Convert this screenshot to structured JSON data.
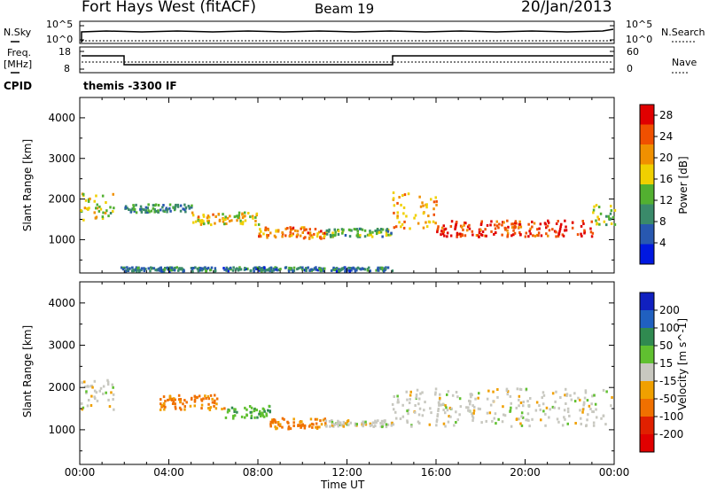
{
  "header": {
    "station": "Fort Hays West (fitACF)",
    "beam": "Beam 19",
    "date": "20/Jan/2013"
  },
  "top_panels": {
    "nsky_label": "N.Sky",
    "nsky_ticks": [
      "10^5",
      "10^0"
    ],
    "nsearch_label": "N.Search",
    "nsearch_ticks": [
      "10^5",
      "10^0"
    ],
    "freq_label_1": "Freq.",
    "freq_label_2": "[MHz]",
    "freq_ticks": [
      "18",
      "8"
    ],
    "nave_label": "Nave",
    "nave_ticks": [
      "60",
      "0"
    ],
    "cpid_label": "CPID",
    "cpid_value": "themis -3300 IF"
  },
  "colors": {
    "power_scale": [
      "#0018e0",
      "#2858b0",
      "#3a8a6a",
      "#52b030",
      "#f0d000",
      "#f09000",
      "#f05000",
      "#e00000"
    ],
    "velocity_scale": [
      "#1020c0",
      "#2060c0",
      "#308a50",
      "#60c030",
      "#c8c8c0",
      "#f0a000",
      "#f07000",
      "#e02000",
      "#e00000"
    ]
  },
  "chart_data": [
    {
      "type": "heatmap",
      "panel": "power",
      "ylabel": "Slant Range [km]",
      "xlabel": "Time UT",
      "x_ticks": [
        "00:00",
        "04:00",
        "08:00",
        "12:00",
        "16:00",
        "20:00",
        "00:00"
      ],
      "x_range_hours": [
        0,
        24
      ],
      "y_ticks": [
        1000,
        2000,
        3000,
        4000
      ],
      "ylim": [
        180,
        4500
      ],
      "colorbar": {
        "label": "Power [dB]",
        "ticks": [
          "4",
          "8",
          "12",
          "16",
          "20",
          "24",
          "28"
        ],
        "range": [
          0,
          30
        ]
      },
      "bands": [
        {
          "t": [
            0.0,
            1.5
          ],
          "r": [
            1500,
            2200
          ],
          "v": 16
        },
        {
          "t": [
            2.0,
            5.0
          ],
          "r": [
            1700,
            1900
          ],
          "v": 10
        },
        {
          "t": [
            5.0,
            8.0
          ],
          "r": [
            1400,
            1700
          ],
          "v": 18
        },
        {
          "t": [
            8.0,
            11.0
          ],
          "r": [
            1050,
            1350
          ],
          "v": 22
        },
        {
          "t": [
            11.0,
            14.0
          ],
          "r": [
            1100,
            1300
          ],
          "v": 12
        },
        {
          "t": [
            14.0,
            16.0
          ],
          "r": [
            1300,
            2200
          ],
          "v": 20
        },
        {
          "t": [
            16.0,
            23.0
          ],
          "r": [
            1100,
            1500
          ],
          "v": 26
        },
        {
          "t": [
            23.0,
            24.0
          ],
          "r": [
            1400,
            1900
          ],
          "v": 14
        },
        {
          "t": [
            1.8,
            14.0
          ],
          "r": [
            250,
            350
          ],
          "v": 8
        }
      ]
    },
    {
      "type": "heatmap",
      "panel": "velocity",
      "ylabel": "Slant Range [km]",
      "xlabel": "Time UT",
      "x_ticks": [
        "00:00",
        "04:00",
        "08:00",
        "12:00",
        "16:00",
        "20:00",
        "00:00"
      ],
      "x_range_hours": [
        0,
        24
      ],
      "y_ticks": [
        1000,
        2000,
        3000,
        4000
      ],
      "ylim": [
        180,
        4500
      ],
      "colorbar": {
        "label": "Velocity [m s^-1]",
        "ticks": [
          "200",
          "100",
          "50",
          "15",
          "-15",
          "-50",
          "-100",
          "-200"
        ],
        "range": [
          -250,
          250
        ]
      },
      "bands": [
        {
          "t": [
            0.0,
            1.5
          ],
          "r": [
            1500,
            2200
          ],
          "v": 0
        },
        {
          "t": [
            3.5,
            6.5
          ],
          "r": [
            1500,
            1850
          ],
          "v": -60
        },
        {
          "t": [
            6.5,
            8.5
          ],
          "r": [
            1300,
            1600
          ],
          "v": 40
        },
        {
          "t": [
            8.5,
            11.0
          ],
          "r": [
            1050,
            1300
          ],
          "v": -60
        },
        {
          "t": [
            11.0,
            14.0
          ],
          "r": [
            1100,
            1250
          ],
          "v": 0
        },
        {
          "t": [
            14.0,
            24.0
          ],
          "r": [
            1100,
            2000
          ],
          "v": 0
        }
      ]
    }
  ]
}
